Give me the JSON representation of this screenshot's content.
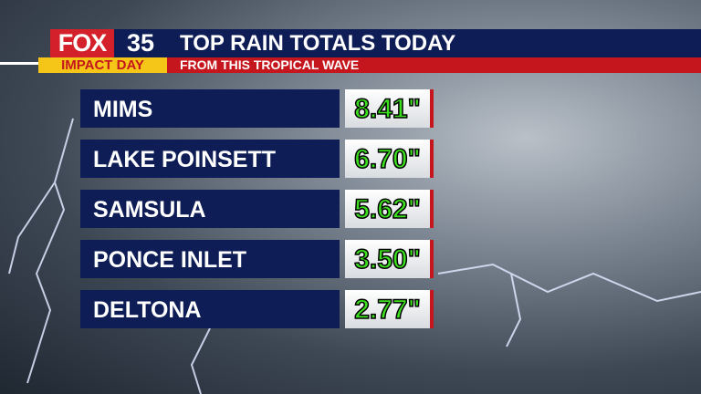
{
  "header": {
    "logo": "FOX",
    "channel": "35",
    "tag": "IMPACT DAY",
    "title": "TOP RAIN TOTALS TODAY",
    "subtitle": "FROM THIS TROPICAL WAVE"
  },
  "table": {
    "rows": [
      {
        "location": "MIMS",
        "amount": "8.41\""
      },
      {
        "location": "LAKE POINSETT",
        "amount": "6.70\""
      },
      {
        "location": "SAMSULA",
        "amount": "5.62\""
      },
      {
        "location": "PONCE INLET",
        "amount": "3.50\""
      },
      {
        "location": "DELTONA",
        "amount": "2.77\""
      }
    ]
  }
}
